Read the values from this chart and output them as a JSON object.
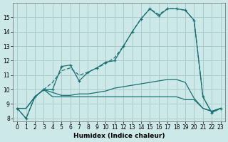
{
  "xlabel": "Humidex (Indice chaleur)",
  "xlim": [
    -0.5,
    23.5
  ],
  "ylim": [
    7.8,
    16.0
  ],
  "yticks": [
    8,
    9,
    10,
    11,
    12,
    13,
    14,
    15
  ],
  "xticks": [
    0,
    1,
    2,
    3,
    4,
    5,
    6,
    7,
    8,
    9,
    10,
    11,
    12,
    13,
    14,
    15,
    16,
    17,
    18,
    19,
    20,
    21,
    22,
    23
  ],
  "bg_color": "#cce8e8",
  "grid_color": "#aacccc",
  "line_color": "#1a7070",
  "curve_main": {
    "x": [
      0,
      1,
      2,
      3,
      4,
      5,
      6,
      7,
      8,
      9,
      10,
      11,
      12,
      13,
      14,
      15,
      16,
      17,
      18,
      19,
      20,
      21,
      22,
      23
    ],
    "y": [
      8.7,
      8.0,
      9.5,
      10.0,
      10.0,
      11.6,
      11.7,
      10.6,
      11.2,
      11.5,
      11.9,
      12.0,
      13.0,
      14.0,
      14.9,
      15.6,
      15.1,
      15.6,
      15.6,
      15.5,
      14.8,
      9.5,
      8.4,
      8.7
    ]
  },
  "curve_smooth": {
    "x": [
      0,
      1,
      2,
      3,
      4,
      5,
      6,
      7,
      8,
      9,
      10,
      11,
      12,
      13,
      14,
      15,
      16,
      17,
      18,
      19,
      20,
      21,
      22,
      23
    ],
    "y": [
      8.7,
      8.0,
      9.5,
      10.0,
      10.5,
      11.3,
      11.5,
      11.0,
      11.2,
      11.5,
      11.8,
      12.2,
      13.0,
      14.0,
      14.9,
      15.6,
      15.2,
      15.6,
      15.6,
      15.5,
      14.8,
      9.5,
      8.4,
      8.7
    ]
  },
  "curve_mid": {
    "x": [
      0,
      1,
      2,
      3,
      4,
      5,
      6,
      7,
      8,
      9,
      10,
      11,
      12,
      13,
      14,
      15,
      16,
      17,
      18,
      19,
      20,
      21,
      22,
      23
    ],
    "y": [
      8.7,
      8.7,
      9.5,
      10.0,
      9.8,
      9.6,
      9.6,
      9.7,
      9.7,
      9.8,
      9.9,
      10.1,
      10.2,
      10.3,
      10.4,
      10.5,
      10.6,
      10.7,
      10.7,
      10.5,
      9.4,
      8.7,
      8.5,
      8.7
    ]
  },
  "curve_flat": {
    "x": [
      0,
      1,
      2,
      3,
      4,
      5,
      6,
      7,
      8,
      9,
      10,
      11,
      12,
      13,
      14,
      15,
      16,
      17,
      18,
      19,
      20,
      21,
      22,
      23
    ],
    "y": [
      8.7,
      8.7,
      9.5,
      10.0,
      9.5,
      9.5,
      9.5,
      9.5,
      9.5,
      9.5,
      9.5,
      9.5,
      9.5,
      9.5,
      9.5,
      9.5,
      9.5,
      9.5,
      9.5,
      9.3,
      9.3,
      8.7,
      8.5,
      8.7
    ]
  }
}
